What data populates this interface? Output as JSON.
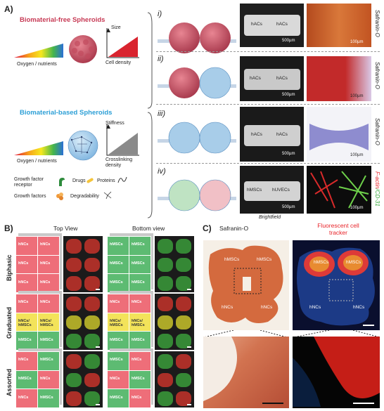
{
  "panel_a": {
    "letter": "A)",
    "biomaterial_free_title": "Biomaterial-free Spheroids",
    "biomaterial_based_title": "Biomaterial-based Spheroids",
    "oxygen_label": "Oxygen / nutrients",
    "size_label": "Size",
    "cell_density_label": "Cell density",
    "stiffness_label": "Stiffness",
    "crosslink_label": "Crosslinking density",
    "legend": {
      "gf_receptor": "Growth factor receptor",
      "drugs": "Drugs",
      "proteins": "Proteins",
      "growth_factors": "Growth factors",
      "degradability": "Degradability"
    },
    "rows": [
      {
        "roman": "i)",
        "bf_left": "hACs",
        "bf_right": "hACs",
        "scale_bf": "500µm",
        "scale_stain": "100µm",
        "stain": "Safranin-O"
      },
      {
        "roman": "ii)",
        "bf_left": "hACs",
        "bf_right": "hACs",
        "scale_bf": "500µm",
        "scale_stain": "100µm",
        "stain": "Safranin-O"
      },
      {
        "roman": "iii)",
        "bf_left": "hACs",
        "bf_right": "hACs",
        "scale_bf": "500µm",
        "scale_stain": "100µm",
        "stain": "Safranin-O"
      },
      {
        "roman": "iv)",
        "bf_left": "hMSCs",
        "bf_right": "hUVECs",
        "scale_bf": "500µm",
        "scale_stain": "100µm",
        "stain_part1": "F-actin",
        "stain_part2": "/CD-31"
      }
    ],
    "brightfield_label": "Brightfield"
  },
  "panel_b": {
    "letter": "B)",
    "top_view": "Top View",
    "bottom_view": "Bottom view",
    "rows": [
      {
        "name": "Biphasic",
        "top": [
          [
            "hNCs",
            "hNCs"
          ],
          [
            "hNCs",
            "hNCs"
          ],
          [
            "hNCs",
            "hNCs"
          ]
        ],
        "bottom": [
          [
            "hMSCs",
            "hMSCs"
          ],
          [
            "hMSCs",
            "hMSCs"
          ],
          [
            "hMSCs",
            "hMSCs"
          ]
        ]
      },
      {
        "name": "Graduated",
        "top": [
          [
            "hNCs",
            "hNCs"
          ],
          [
            "hNCs/ hMSCs",
            "hNCs/ hMSCs"
          ],
          [
            "hMSCs",
            "hMSCs"
          ]
        ],
        "bottom": [
          [
            "hNCs",
            "hNCs"
          ],
          [
            "hNCs/ hMSCs",
            "hNCs/ hMSCs"
          ],
          [
            "hMSCs",
            "hMSCs"
          ]
        ]
      },
      {
        "name": "Assorted",
        "top": [
          [
            "hNCs",
            "hMSCs"
          ],
          [
            "hMSCs",
            "hNCs"
          ],
          [
            "hNCs",
            "hMSCs"
          ]
        ],
        "bottom": [
          [
            "hMSCs",
            "hNCs"
          ],
          [
            "hNCs",
            "hMSCs"
          ],
          [
            "hMSCs",
            "hNCs"
          ]
        ]
      }
    ]
  },
  "panel_c": {
    "letter": "C)",
    "safranin_title": "Safranin-O",
    "fluor_title": "Fluorescent cell tracker",
    "labels": {
      "tl": "hMSCs",
      "tr": "hMSCs",
      "bl": "hNCs",
      "br": "hNCs"
    }
  },
  "colors": {
    "red_title": "#c73a55",
    "blue_title": "#2c9fd6",
    "hnc_cube": "#ee6e79",
    "hmsc_cube": "#5dbb72",
    "mix_cube": "#f3e35a",
    "fluor_red": "#ff3b2a"
  }
}
